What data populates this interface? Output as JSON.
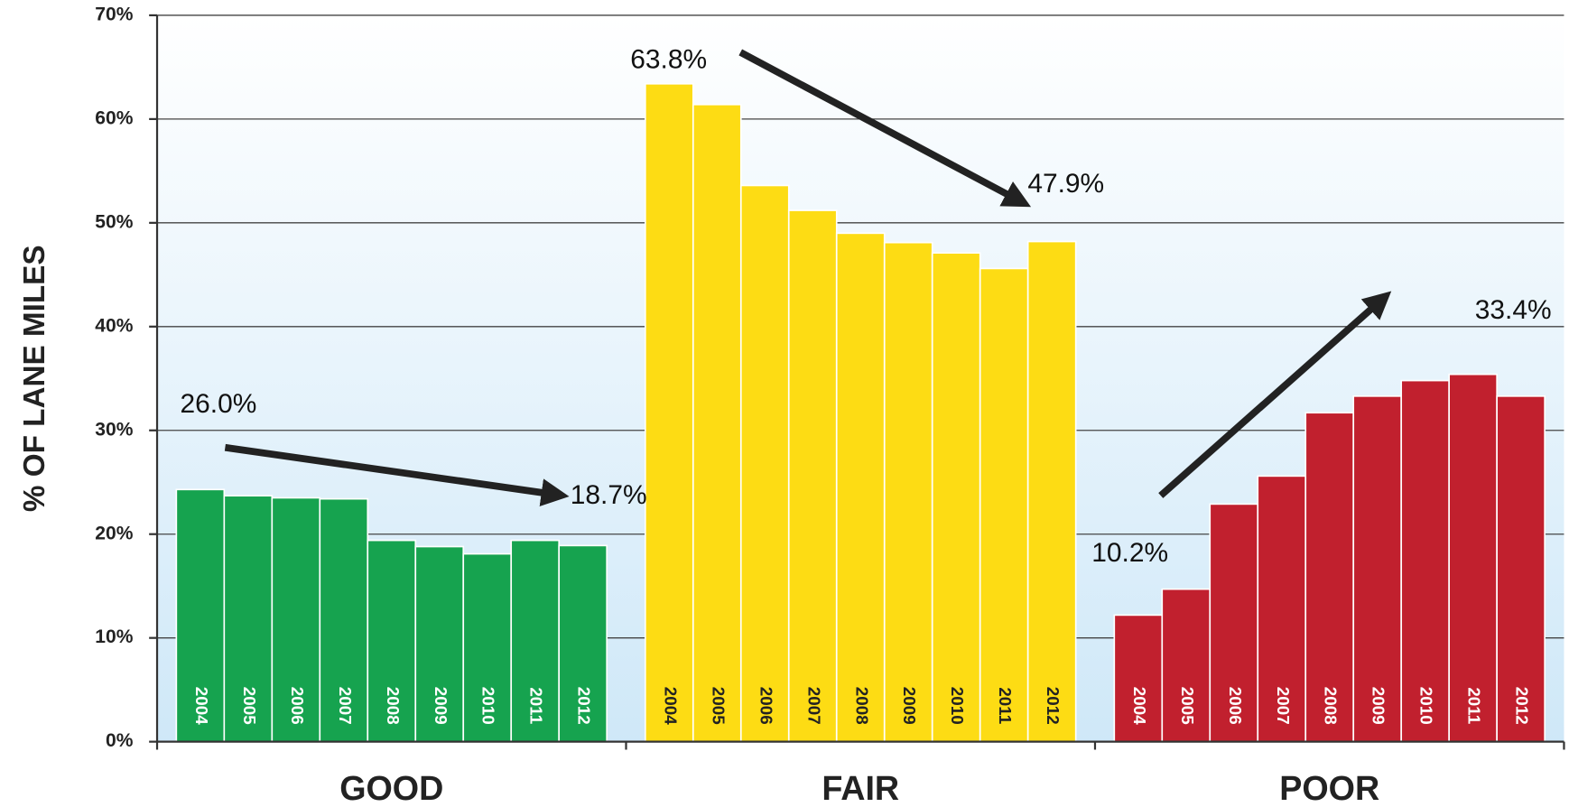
{
  "chart_data": {
    "type": "bar",
    "y_label": "% OF LANE MILES",
    "categories": [
      "2004",
      "2005",
      "2006",
      "2007",
      "2008",
      "2009",
      "2010",
      "2011",
      "2012"
    ],
    "series": [
      {
        "name": "GOOD",
        "color": "#16a34f",
        "text_color": "#ffffff",
        "values": [
          24.3,
          23.7,
          23.5,
          23.4,
          19.4,
          18.8,
          18.1,
          19.4,
          18.9
        ]
      },
      {
        "name": "FAIR",
        "color": "#fddc14",
        "text_color": "#222222",
        "values": [
          63.4,
          61.4,
          53.6,
          51.2,
          49.0,
          48.1,
          47.1,
          45.6,
          48.2
        ]
      },
      {
        "name": "POOR",
        "color": "#c1202e",
        "text_color": "#ffffff",
        "values": [
          12.2,
          14.7,
          22.9,
          25.6,
          31.7,
          33.3,
          34.8,
          35.4,
          33.3
        ]
      }
    ],
    "annotations": [
      "26.0%",
      "18.7%",
      "63.8%",
      "47.9%",
      "10.2%",
      "33.4%"
    ],
    "ylim": [
      0,
      70
    ],
    "yticks": [
      {
        "value": 0,
        "label": "0%"
      },
      {
        "value": 10,
        "label": "10%"
      },
      {
        "value": 20,
        "label": "20%"
      },
      {
        "value": 30,
        "label": "30%"
      },
      {
        "value": 40,
        "label": "40%"
      },
      {
        "value": 50,
        "label": "50%"
      },
      {
        "value": 60,
        "label": "60%"
      },
      {
        "value": 70,
        "label": "70%"
      }
    ],
    "grid": true
  }
}
